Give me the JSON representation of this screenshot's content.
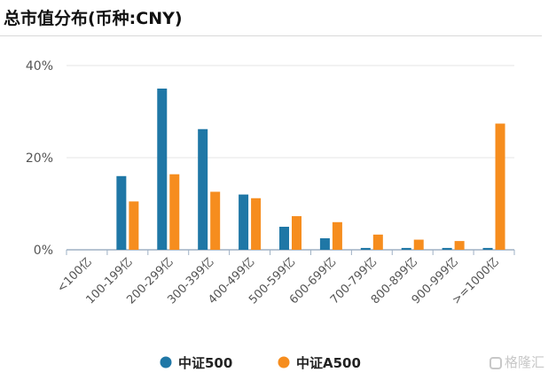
{
  "title": "总市值分布(币种:CNY)",
  "watermark": "格隆汇",
  "colors": {
    "series_1": "#1f77a6",
    "series_2": "#f68d1e",
    "grid": "#e6e6e6",
    "axis": "#9eb0c4",
    "tick_text": "#555555"
  },
  "chart_data": {
    "type": "bar",
    "categories": [
      "<100亿",
      "100-199亿",
      "200-299亿",
      "300-399亿",
      "400-499亿",
      "500-599亿",
      "600-699亿",
      "700-799亿",
      "800-899亿",
      "900-999亿",
      ">=1000亿"
    ],
    "series": [
      {
        "name": "中证500",
        "values": [
          0,
          16,
          35,
          26.2,
          12,
          5,
          2.5,
          0.4,
          0.4,
          0.4,
          0.4
        ]
      },
      {
        "name": "中证A500",
        "values": [
          0,
          10.5,
          16.4,
          12.6,
          11.2,
          7.3,
          6,
          3.3,
          2.2,
          1.9,
          27.4
        ]
      }
    ],
    "yticks": [
      "0%",
      "20%",
      "40%"
    ],
    "ylim": [
      0,
      40
    ],
    "grid": true,
    "legend_position": "bottom"
  }
}
